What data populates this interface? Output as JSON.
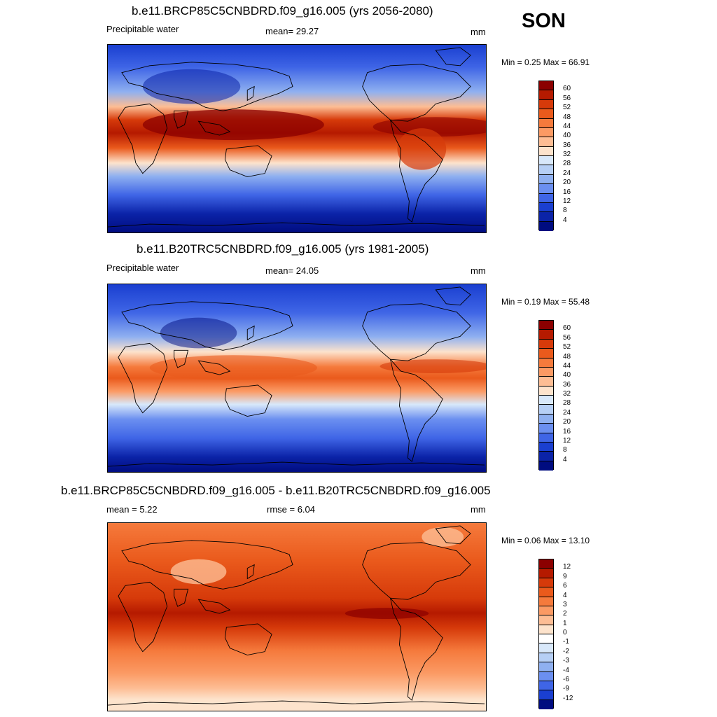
{
  "season": "SON",
  "panels": [
    {
      "title": "b.e11.BRCP85C5CNBDRD.f09_g16.005 (yrs 2056-2080)",
      "left_label": "Precipitable water",
      "center_label": "mean=  29.27",
      "right_label": "mm",
      "minmax": "Min =   0.25 Max =  66.91",
      "colorbar": {
        "labels": [
          "60",
          "56",
          "52",
          "48",
          "44",
          "40",
          "36",
          "32",
          "28",
          "24",
          "20",
          "16",
          "12",
          "8",
          "4"
        ],
        "colors": [
          "#8b0000",
          "#b51a00",
          "#d63a0a",
          "#ea5a1c",
          "#f57a3c",
          "#fb9a64",
          "#fdbd94",
          "#fde3cc",
          "#d8e8fa",
          "#b6cff5",
          "#8fb0f0",
          "#6b8ff0",
          "#3f65e6",
          "#1a3fd0",
          "#0b23a8",
          "#000c80"
        ]
      }
    },
    {
      "title": "b.e11.B20TRC5CNBDRD.f09_g16.005 (yrs 1981-2005)",
      "left_label": "Precipitable water",
      "center_label": "mean=  24.05",
      "right_label": "mm",
      "minmax": "Min =   0.19 Max =  55.48",
      "colorbar": {
        "labels": [
          "60",
          "56",
          "52",
          "48",
          "44",
          "40",
          "36",
          "32",
          "28",
          "24",
          "20",
          "16",
          "12",
          "8",
          "4"
        ],
        "colors": [
          "#8b0000",
          "#b51a00",
          "#d63a0a",
          "#ea5a1c",
          "#f57a3c",
          "#fb9a64",
          "#fdbd94",
          "#fde3cc",
          "#d8e8fa",
          "#b6cff5",
          "#8fb0f0",
          "#6b8ff0",
          "#3f65e6",
          "#1a3fd0",
          "#0b23a8",
          "#000c80"
        ]
      }
    },
    {
      "title": "b.e11.BRCP85C5CNBDRD.f09_g16.005 - b.e11.B20TRC5CNBDRD.f09_g16.005",
      "left_label": "mean =   5.22",
      "center_label": "rmse =   6.04",
      "right_label": "mm",
      "minmax": "Min =   0.06 Max =  13.10",
      "colorbar": {
        "labels": [
          "12",
          "9",
          "6",
          "4",
          "3",
          "2",
          "1",
          "0",
          "-1",
          "-2",
          "-3",
          "-4",
          "-6",
          "-9",
          "-12"
        ],
        "colors": [
          "#8b0000",
          "#b51a00",
          "#d63a0a",
          "#ea5a1c",
          "#f57a3c",
          "#fb9a64",
          "#fdbd94",
          "#fde3cc",
          "#ffffff",
          "#d8e8fa",
          "#b6cff5",
          "#8fb0f0",
          "#6b8ff0",
          "#3f65e6",
          "#1a3fd0",
          "#000c80"
        ]
      }
    }
  ]
}
